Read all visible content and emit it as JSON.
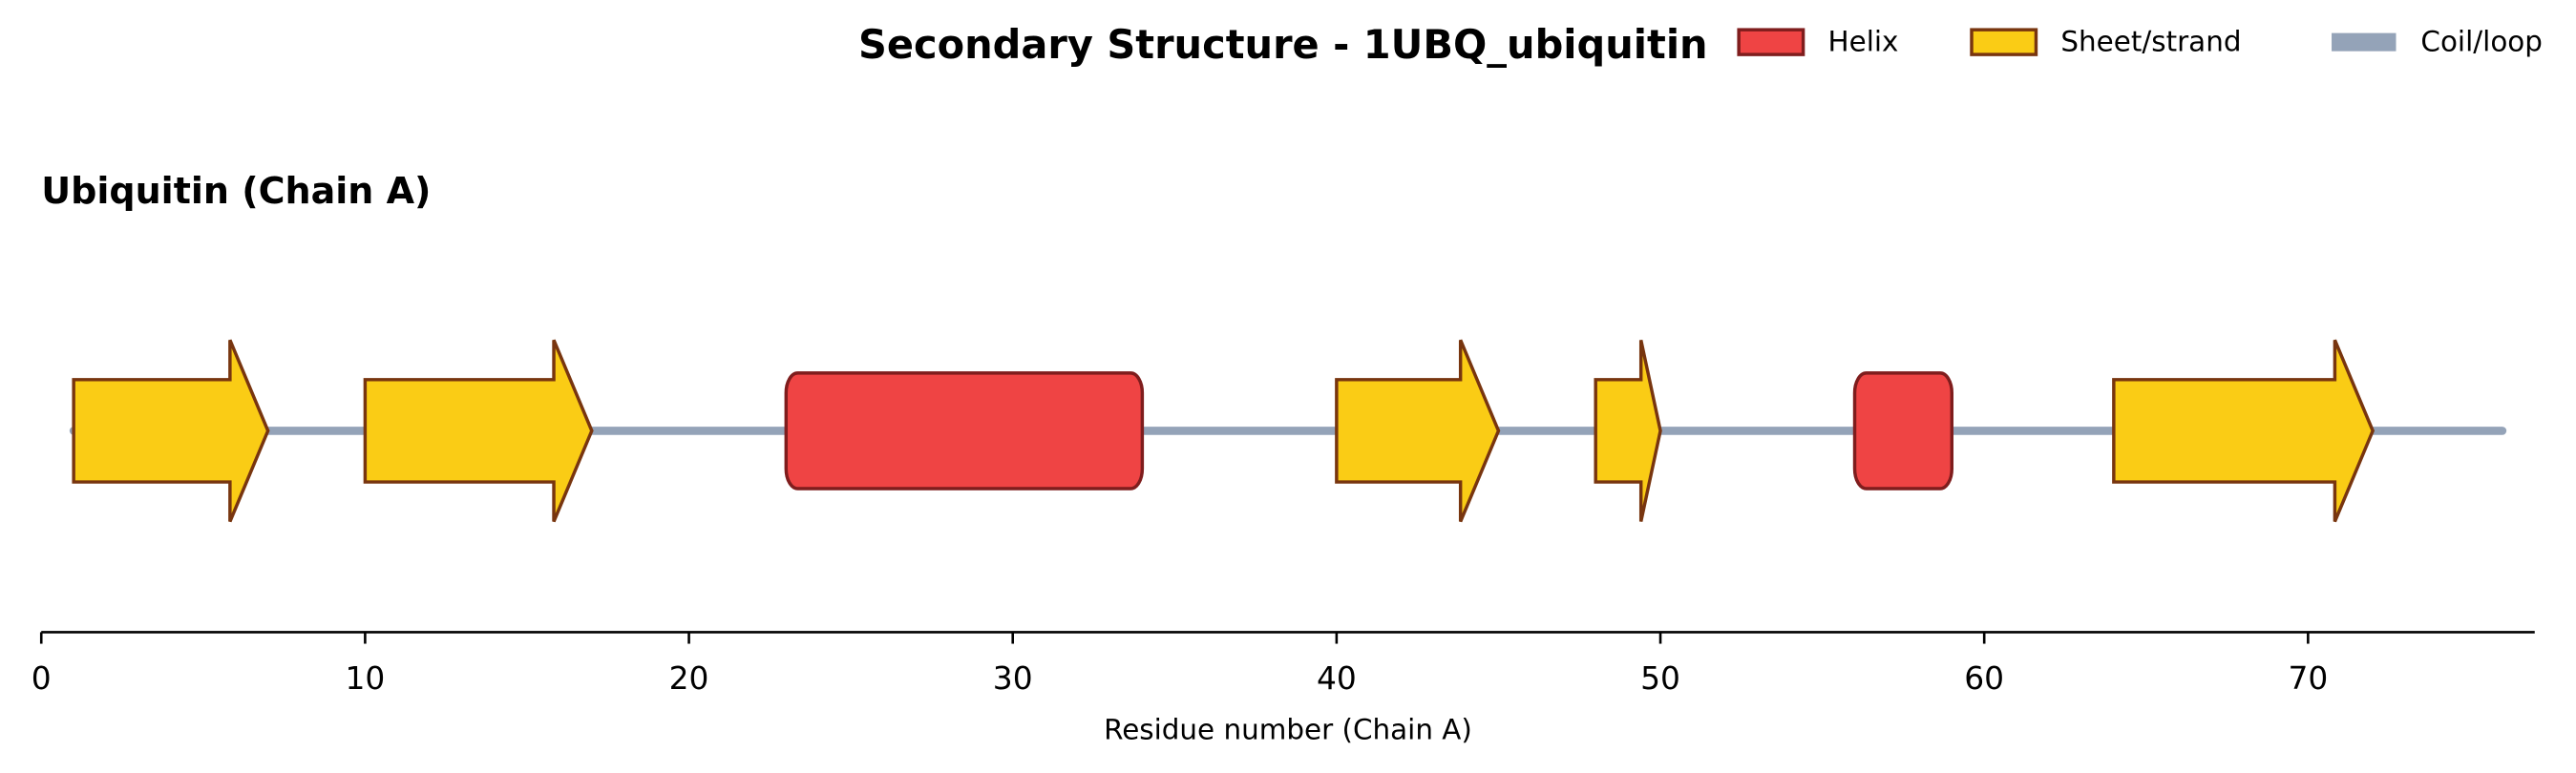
{
  "chart_data": {
    "type": "secondary_structure",
    "title": "Secondary Structure - 1UBQ_ubiquitin",
    "subtitle": "Ubiquitin (Chain A)",
    "x_label": "Residue number (Chain A)",
    "xlim": [
      0,
      77
    ],
    "xticks": [
      0,
      10,
      20,
      30,
      40,
      50,
      60,
      70
    ],
    "legend": "upper right",
    "series": [
      {
        "name": "Helix",
        "shape": "helix",
        "color": "#ef4444",
        "edge": "#7f1d1d",
        "values": [
          [
            23,
            34
          ],
          [
            56,
            59
          ]
        ]
      },
      {
        "name": "Sheet/strand",
        "shape": "arrow",
        "color": "#facc15",
        "edge": "#78350f",
        "values": [
          [
            1,
            7
          ],
          [
            10,
            17
          ],
          [
            40,
            45
          ],
          [
            48,
            50
          ],
          [
            64,
            72
          ]
        ]
      },
      {
        "name": "Coil/loop",
        "shape": "line",
        "color": "#94a3b8",
        "values": [
          [
            1,
            76
          ]
        ]
      }
    ]
  }
}
